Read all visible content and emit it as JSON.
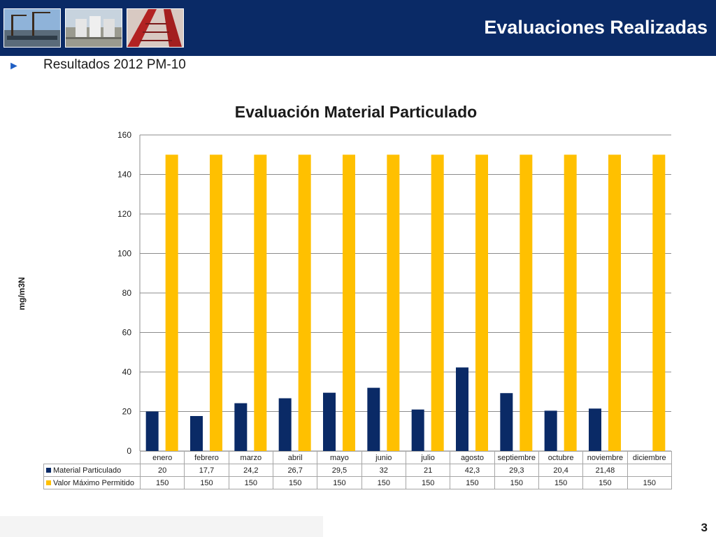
{
  "header": {
    "title": "Evaluaciones Realizadas",
    "background": "#0a2a66"
  },
  "bullet": {
    "icon": "triangle-right-icon",
    "text": "Resultados 2012 PM-10"
  },
  "chart_data": {
    "type": "bar",
    "title": "Evaluación Material Particulado",
    "xlabel": "",
    "ylabel": "mg/m3N",
    "ylim": [
      0,
      160
    ],
    "yticks": [
      0,
      20,
      40,
      60,
      80,
      100,
      120,
      140,
      160
    ],
    "grid": true,
    "legend": "table-below",
    "categories": [
      "enero",
      "febrero",
      "marzo",
      "abril",
      "mayo",
      "junio",
      "julio",
      "agosto",
      "septiembre",
      "octubre",
      "noviembre",
      "diciembre"
    ],
    "series": [
      {
        "name": "Material Particulado",
        "color": "#0a2a66",
        "values": [
          20,
          17.7,
          24.2,
          26.7,
          29.5,
          32,
          21,
          42.3,
          29.3,
          20.4,
          21.48,
          null
        ],
        "labels": [
          "20",
          "17,7",
          "24,2",
          "26,7",
          "29,5",
          "32",
          "21",
          "42,3",
          "29,3",
          "20,4",
          "21,48",
          ""
        ]
      },
      {
        "name": "Valor Máximo Permitido",
        "color": "#ffc000",
        "values": [
          150,
          150,
          150,
          150,
          150,
          150,
          150,
          150,
          150,
          150,
          150,
          150
        ],
        "labels": [
          "150",
          "150",
          "150",
          "150",
          "150",
          "150",
          "150",
          "150",
          "150",
          "150",
          "150",
          "150"
        ]
      }
    ]
  },
  "page": {
    "number": "3"
  }
}
